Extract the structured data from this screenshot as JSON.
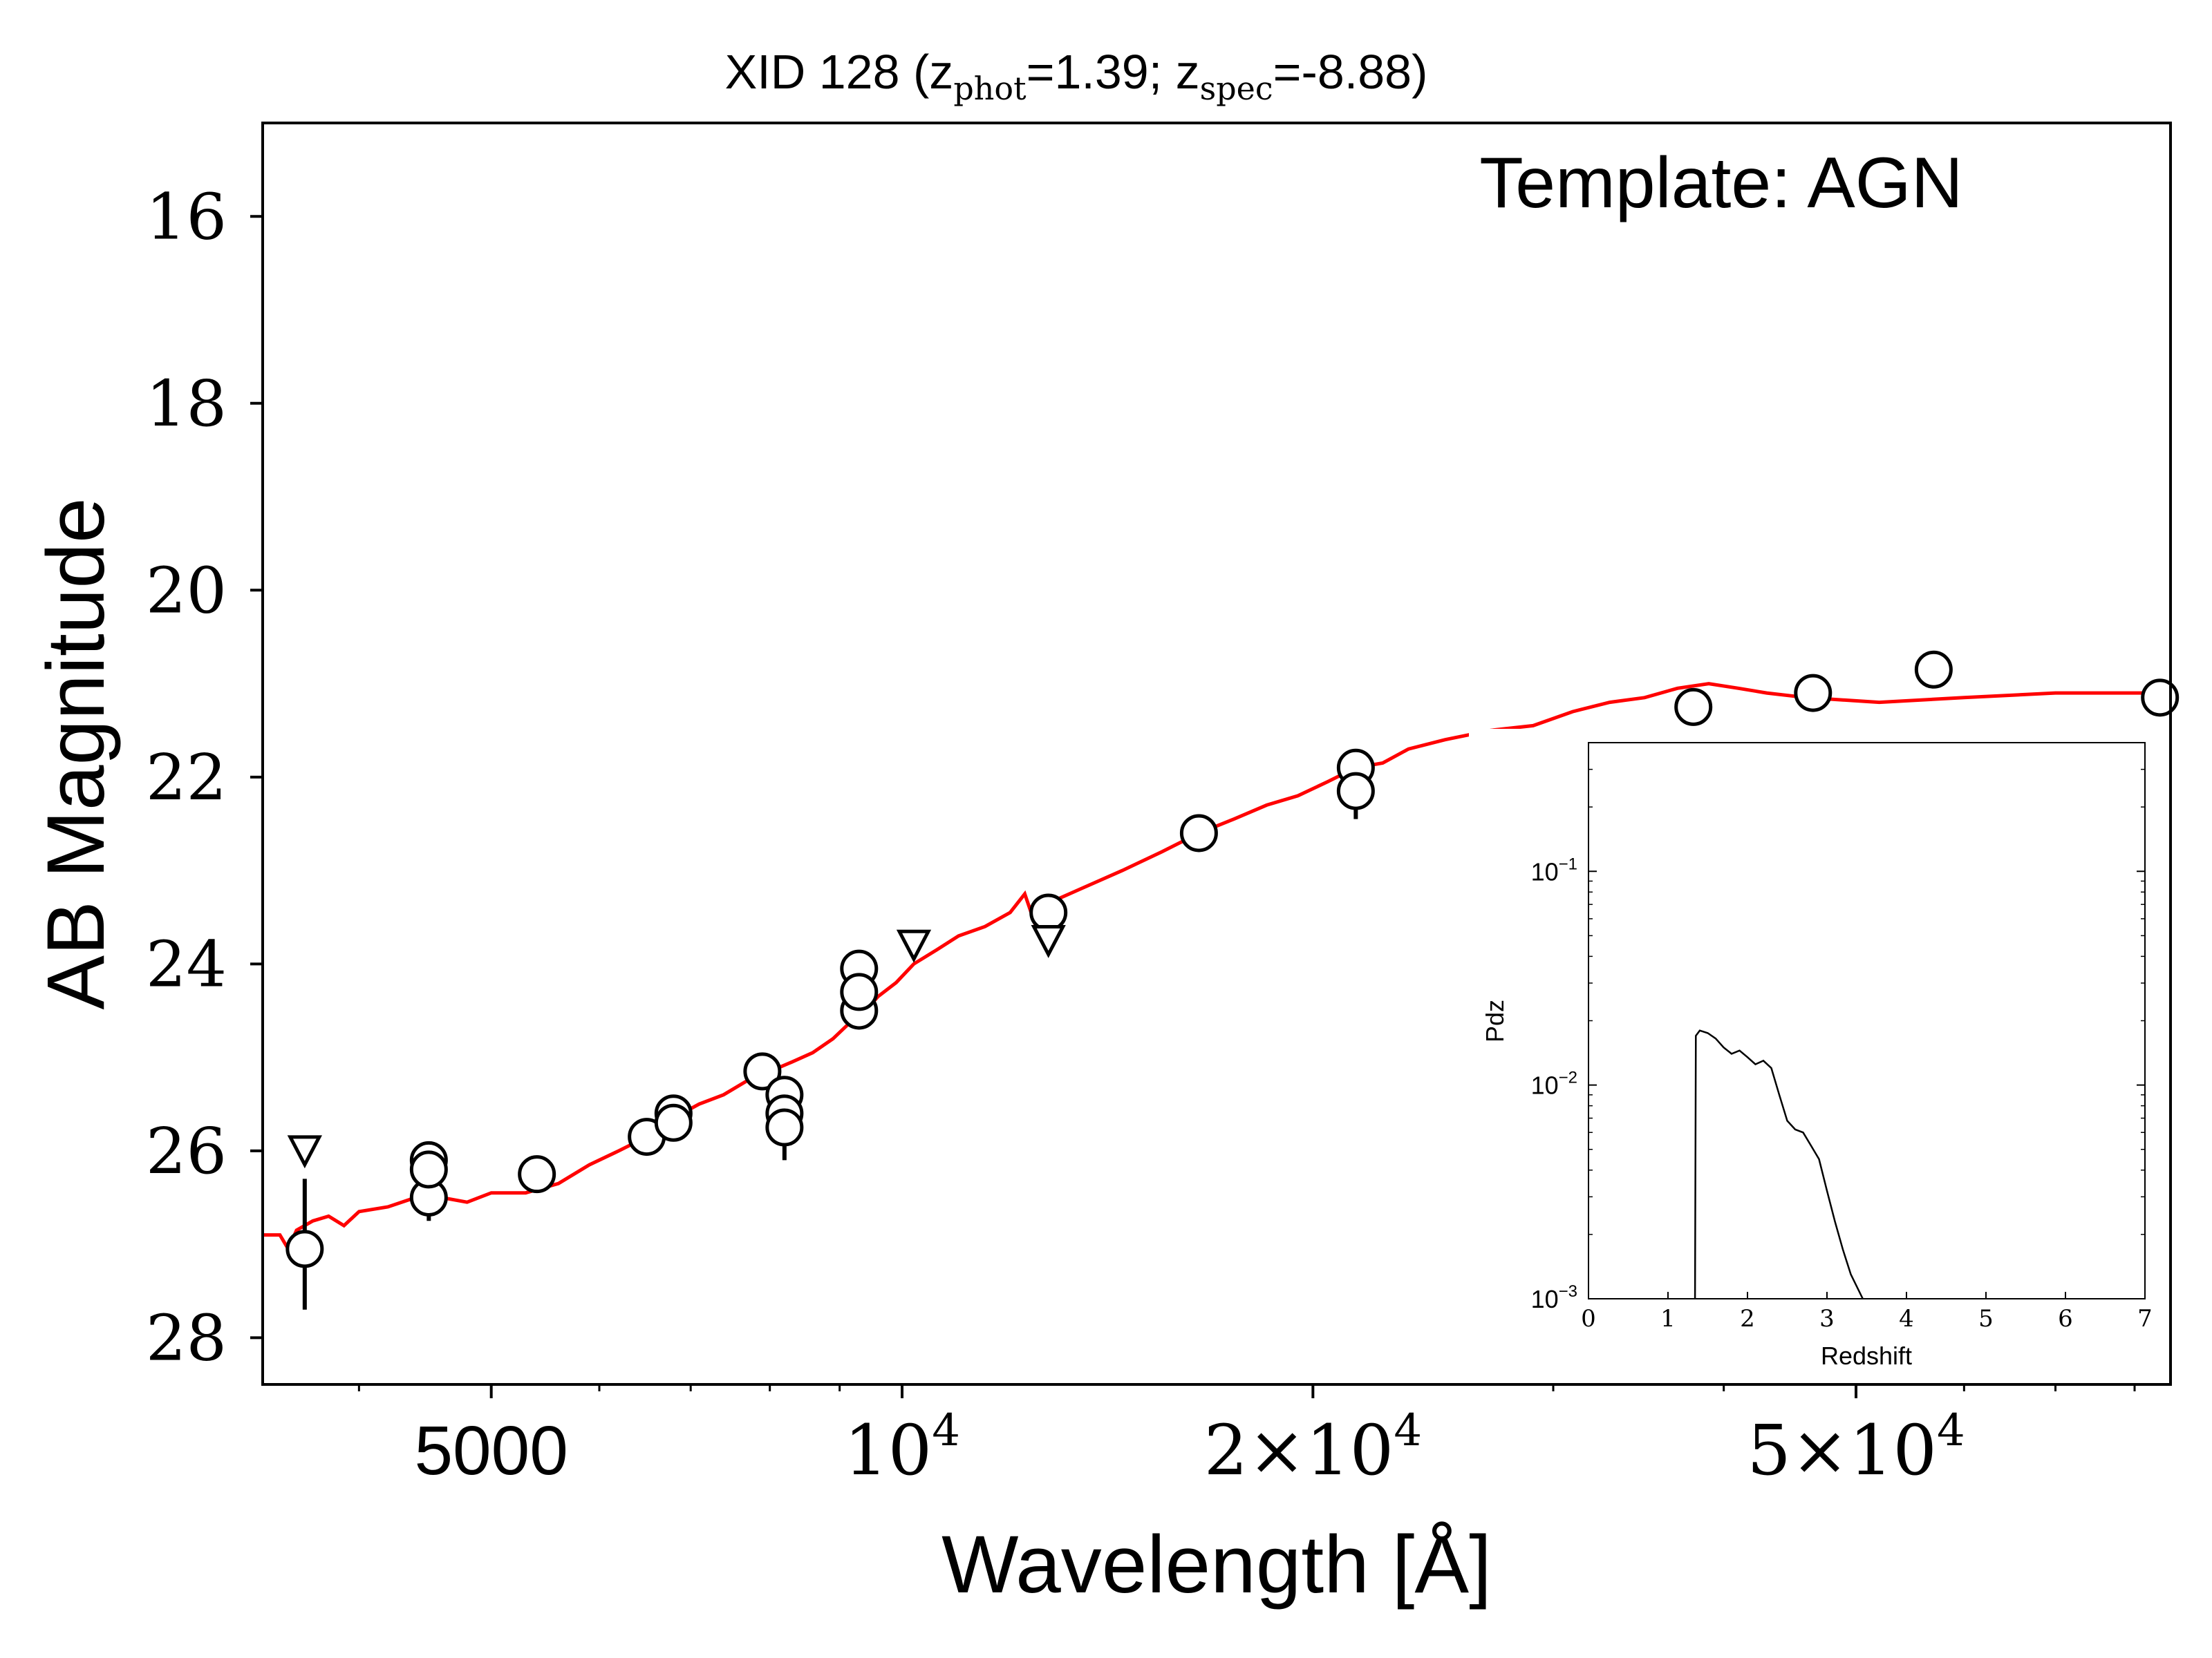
{
  "chart_data": [
    {
      "type": "scatter",
      "title": {
        "prefix": "XID 128 (z",
        "sub1": "phot",
        "mid": "=1.39; z",
        "sub2": "spec",
        "suffix": "=-8.88)"
      },
      "xlabel": "Wavelength [Å]",
      "ylabel": "AB Magnitude",
      "annotation": "Template: AGN",
      "x_scale": "log",
      "xlim": [
        3400,
        85000
      ],
      "ylim": [
        28.5,
        15.0
      ],
      "y_inverted": true,
      "x_ticks": [
        {
          "value": 5000,
          "base": "5000",
          "exp": ""
        },
        {
          "value": 10000,
          "base": "10",
          "exp": "4"
        },
        {
          "value": 20000,
          "base": "2×10",
          "exp": "4"
        },
        {
          "value": 50000,
          "base": "5×10",
          "exp": "4"
        }
      ],
      "x_minor_ticks": [
        4000,
        6000,
        7000,
        8000,
        9000,
        30000,
        40000,
        60000,
        70000,
        80000
      ],
      "y_ticks": [
        16,
        18,
        20,
        22,
        24,
        26,
        28
      ],
      "y_tick_labels": [
        "16",
        "18",
        "20",
        "22",
        "24",
        "26",
        "28"
      ],
      "colors": {
        "model": "#ff0000",
        "points": "#000000"
      },
      "grid": false,
      "series": [
        {
          "kind": "line",
          "points": [
            [
              3400,
              26.9
            ],
            [
              3500,
              26.9
            ],
            [
              3550,
              27.05
            ],
            [
              3600,
              26.85
            ],
            [
              3700,
              26.75
            ],
            [
              3800,
              26.7
            ],
            [
              3900,
              26.8
            ],
            [
              4000,
              26.65
            ],
            [
              4200,
              26.6
            ],
            [
              4400,
              26.5
            ],
            [
              4600,
              26.5
            ],
            [
              4800,
              26.55
            ],
            [
              5000,
              26.45
            ],
            [
              5300,
              26.45
            ],
            [
              5600,
              26.35
            ],
            [
              5900,
              26.15
            ],
            [
              6200,
              26.0
            ],
            [
              6500,
              25.85
            ],
            [
              6800,
              25.65
            ],
            [
              7100,
              25.5
            ],
            [
              7400,
              25.4
            ],
            [
              7700,
              25.25
            ],
            [
              8000,
              25.15
            ],
            [
              8300,
              25.05
            ],
            [
              8600,
              24.95
            ],
            [
              8900,
              24.8
            ],
            [
              9200,
              24.6
            ],
            [
              9400,
              24.5
            ],
            [
              9600,
              24.35
            ],
            [
              9900,
              24.2
            ],
            [
              10200,
              24.0
            ],
            [
              10600,
              23.85
            ],
            [
              11000,
              23.7
            ],
            [
              11500,
              23.6
            ],
            [
              12000,
              23.45
            ],
            [
              12300,
              23.25
            ],
            [
              12500,
              23.55
            ],
            [
              12800,
              23.35
            ],
            [
              13500,
              23.2
            ],
            [
              14500,
              23.0
            ],
            [
              15500,
              22.8
            ],
            [
              16500,
              22.6
            ],
            [
              17500,
              22.45
            ],
            [
              18500,
              22.3
            ],
            [
              19500,
              22.2
            ],
            [
              20500,
              22.05
            ],
            [
              21500,
              21.9
            ],
            [
              22500,
              21.85
            ],
            [
              23500,
              21.7
            ],
            [
              25000,
              21.6
            ],
            [
              27000,
              21.5
            ],
            [
              29000,
              21.45
            ],
            [
              31000,
              21.3
            ],
            [
              33000,
              21.2
            ],
            [
              35000,
              21.15
            ],
            [
              37000,
              21.05
            ],
            [
              39000,
              21.0
            ],
            [
              41000,
              21.05
            ],
            [
              43000,
              21.1
            ],
            [
              46000,
              21.15
            ],
            [
              52000,
              21.2
            ],
            [
              60000,
              21.15
            ],
            [
              70000,
              21.1
            ],
            [
              85000,
              21.1
            ]
          ]
        },
        {
          "kind": "circles",
          "points": [
            [
              3650,
              27.05
            ],
            [
              4500,
              26.1
            ],
            [
              4500,
              26.5
            ],
            [
              4500,
              26.2
            ],
            [
              5400,
              26.25
            ],
            [
              6500,
              25.85
            ],
            [
              6800,
              25.6
            ],
            [
              6800,
              25.7
            ],
            [
              7900,
              25.15
            ],
            [
              8200,
              25.4
            ],
            [
              8200,
              25.6
            ],
            [
              8200,
              25.75
            ],
            [
              9300,
              24.05
            ],
            [
              9300,
              24.5
            ],
            [
              9300,
              24.3
            ],
            [
              12800,
              23.45
            ],
            [
              16500,
              22.6
            ],
            [
              21500,
              21.9
            ],
            [
              21500,
              22.15
            ],
            [
              38000,
              21.25
            ],
            [
              46500,
              21.1
            ],
            [
              57000,
              20.85
            ],
            [
              83500,
              21.15
            ]
          ],
          "error_bars": [
            [
              3650,
              26.3,
              27.7
            ],
            [
              4500,
              26.05,
              26.75
            ],
            [
              5400,
              26.1,
              26.45
            ],
            [
              8200,
              25.3,
              26.1
            ],
            [
              9300,
              24.0,
              24.65
            ],
            [
              21500,
              21.8,
              22.45
            ],
            [
              83500,
              21.05,
              21.35
            ]
          ]
        },
        {
          "kind": "upper_limits",
          "points": [
            [
              3650,
              26.0
            ],
            [
              10200,
              23.8
            ],
            [
              12800,
              23.75
            ]
          ]
        }
      ]
    },
    {
      "type": "line",
      "ylabel": "Pdz",
      "xlabel": "Redshift",
      "x_scale": "linear",
      "y_scale": "log",
      "xlim": [
        0,
        7
      ],
      "ylim": [
        0.001,
        0.4
      ],
      "x_ticks": [
        0,
        1,
        2,
        3,
        4,
        5,
        6,
        7
      ],
      "x_tick_labels": [
        "0",
        "1",
        "2",
        "3",
        "4",
        "5",
        "6",
        "7"
      ],
      "y_ticks": [
        {
          "value": 0.001,
          "base": "10",
          "exp": "−3"
        },
        {
          "value": 0.01,
          "base": "10",
          "exp": "−2"
        },
        {
          "value": 0.1,
          "base": "10",
          "exp": "−1"
        }
      ],
      "grid": false,
      "colors": {
        "line": "#000000"
      },
      "series": [
        {
          "kind": "line",
          "points": [
            [
              1.34,
              0.001
            ],
            [
              1.35,
              0.017
            ],
            [
              1.4,
              0.018
            ],
            [
              1.5,
              0.0175
            ],
            [
              1.6,
              0.0165
            ],
            [
              1.7,
              0.015
            ],
            [
              1.8,
              0.014
            ],
            [
              1.9,
              0.0145
            ],
            [
              2.0,
              0.0135
            ],
            [
              2.1,
              0.0125
            ],
            [
              2.2,
              0.013
            ],
            [
              2.3,
              0.012
            ],
            [
              2.4,
              0.009
            ],
            [
              2.5,
              0.0068
            ],
            [
              2.6,
              0.0062
            ],
            [
              2.7,
              0.006
            ],
            [
              2.8,
              0.0052
            ],
            [
              2.9,
              0.0045
            ],
            [
              3.0,
              0.0032
            ],
            [
              3.1,
              0.0023
            ],
            [
              3.2,
              0.0017
            ],
            [
              3.3,
              0.0013
            ],
            [
              3.45,
              0.001
            ]
          ]
        }
      ]
    }
  ]
}
